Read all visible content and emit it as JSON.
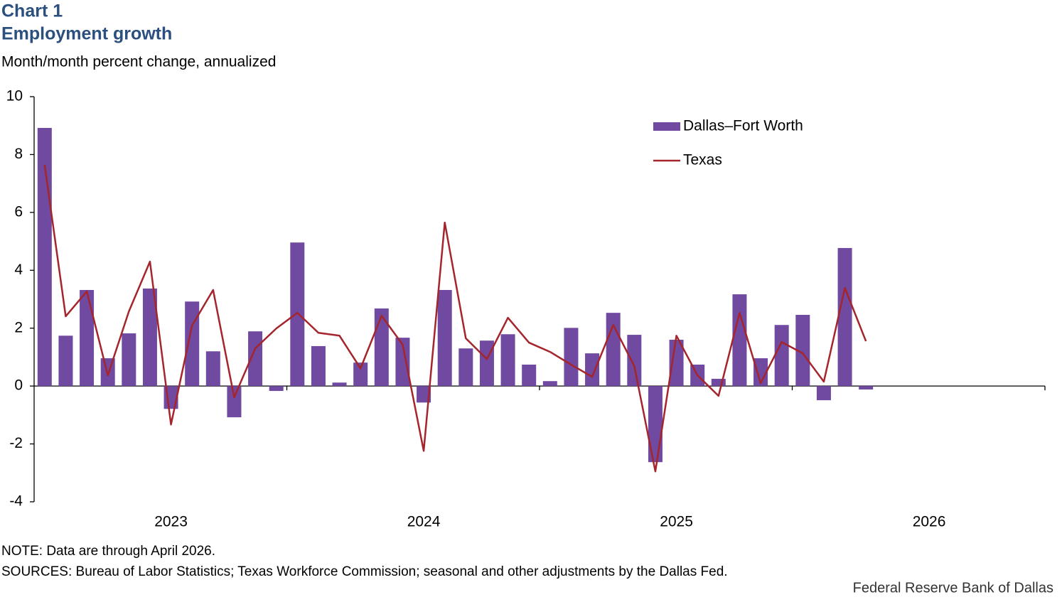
{
  "chart_data": {
    "type": "bar_line",
    "label": "Chart 1",
    "title": "Employment growth",
    "subtitle": "Month/month percent change, annualized",
    "note": "NOTE: Data are through  April 2026.",
    "sources": "SOURCES: Bureau of Labor Statistics; Texas Workforce Commission; seasonal and other adjustments  by the Dallas Fed.",
    "credit": "Federal Reserve Bank of Dallas",
    "categories": [
      null,
      null,
      null,
      null,
      null,
      null,
      "2023",
      null,
      null,
      null,
      null,
      null,
      null,
      null,
      null,
      null,
      null,
      null,
      "2024",
      null,
      null,
      null,
      null,
      null,
      null,
      null,
      null,
      null,
      null,
      null,
      "2025",
      null,
      null,
      null,
      null,
      null,
      null,
      null,
      null,
      null,
      null,
      null,
      "2026",
      null,
      null,
      null,
      null,
      null
    ],
    "series": [
      {
        "name": "Dallas–Fort Worth",
        "kind": "bar",
        "color": "#7049a0",
        "values": [
          8.92,
          1.74,
          3.32,
          0.96,
          1.82,
          3.37,
          -0.79,
          2.92,
          1.2,
          -1.08,
          1.89,
          -0.17,
          4.96,
          1.38,
          0.12,
          0.81,
          2.68,
          1.67,
          -0.57,
          3.32,
          1.3,
          1.57,
          1.79,
          0.74,
          0.17,
          2.01,
          1.13,
          2.53,
          1.77,
          -2.63,
          1.6,
          0.74,
          0.25,
          3.17,
          0.96,
          2.11,
          2.46,
          -0.49,
          4.77,
          -0.12,
          null,
          null,
          null,
          null,
          null,
          null,
          null,
          null
        ]
      },
      {
        "name": "Texas",
        "kind": "line",
        "color": "#a5252c",
        "values": [
          7.64,
          2.41,
          3.27,
          0.37,
          2.58,
          4.3,
          -1.33,
          2.09,
          3.32,
          -0.39,
          1.3,
          1.99,
          2.53,
          1.84,
          1.74,
          0.61,
          2.43,
          1.43,
          -2.24,
          5.65,
          1.65,
          0.93,
          2.36,
          1.5,
          1.18,
          0.74,
          0.32,
          2.11,
          0.69,
          -2.95,
          1.74,
          0.37,
          -0.34,
          2.53,
          0.1,
          1.52,
          1.13,
          0.15,
          3.39,
          1.55,
          null,
          null,
          null,
          null,
          null,
          null,
          null,
          null
        ]
      }
    ],
    "ylim": [
      -4,
      10
    ],
    "yticks": [
      -4,
      -2,
      0,
      2,
      4,
      6,
      8,
      10
    ],
    "grid": false,
    "legend": "top-right"
  }
}
